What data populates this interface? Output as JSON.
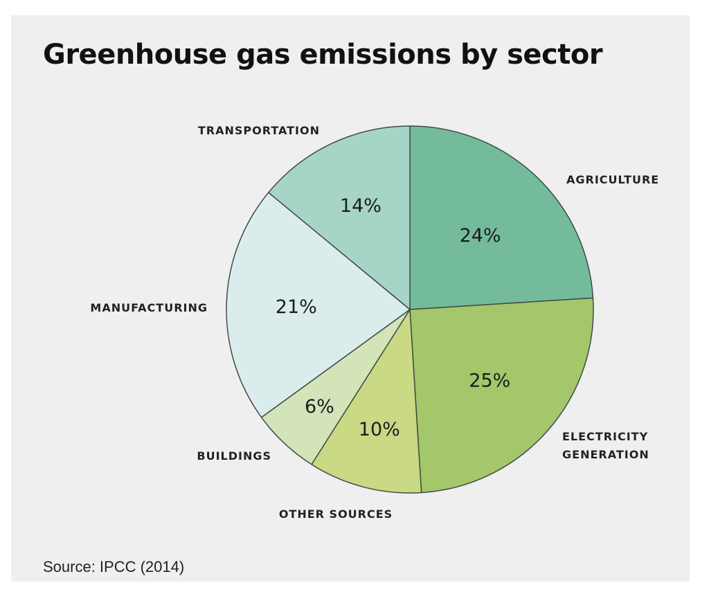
{
  "source": "Source: IPCC (2014)",
  "chart_data": {
    "type": "pie",
    "title": "Greenhouse gas emissions by sector",
    "slices": [
      {
        "label": [
          "AGRICULTURE"
        ],
        "value": 24,
        "display": "24%",
        "color": "#74bb9b"
      },
      {
        "label": [
          "ELECTRICITY",
          "GENERATION"
        ],
        "value": 25,
        "display": "25%",
        "color": "#a3c76a"
      },
      {
        "label": [
          "OTHER SOURCES"
        ],
        "value": 10,
        "display": "10%",
        "color": "#c9d984"
      },
      {
        "label": [
          "BUILDINGS"
        ],
        "value": 6,
        "display": "6%",
        "color": "#d3e4b9"
      },
      {
        "label": [
          "MANUFACTURING"
        ],
        "value": 21,
        "display": "21%",
        "color": "#dbecec"
      },
      {
        "label": [
          "TRANSPORTATION"
        ],
        "value": 14,
        "display": "14%",
        "color": "#a6d5c7"
      }
    ]
  }
}
